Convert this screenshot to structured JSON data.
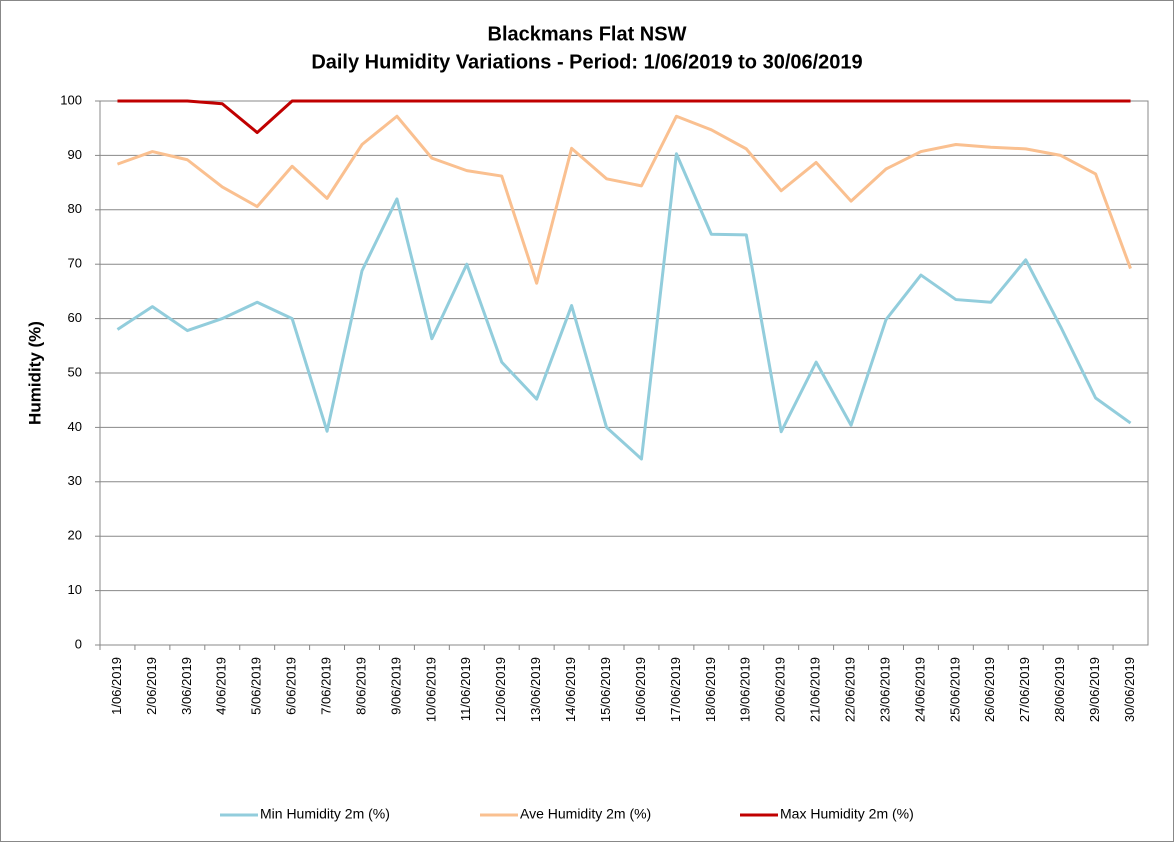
{
  "chart_data": {
    "type": "line",
    "title": "Blackmans Flat NSW",
    "subtitle": "Daily Humidity Variations - Period: 1/06/2019 to 30/06/2019",
    "y_label": "Humidity (%)",
    "categories": [
      "1/06/2019",
      "2/06/2019",
      "3/06/2019",
      "4/06/2019",
      "5/06/2019",
      "6/06/2019",
      "7/06/2019",
      "8/06/2019",
      "9/06/2019",
      "10/06/2019",
      "11/06/2019",
      "12/06/2019",
      "13/06/2019",
      "14/06/2019",
      "15/06/2019",
      "16/06/2019",
      "17/06/2019",
      "18/06/2019",
      "19/06/2019",
      "20/06/2019",
      "21/06/2019",
      "22/06/2019",
      "23/06/2019",
      "24/06/2019",
      "25/06/2019",
      "26/06/2019",
      "27/06/2019",
      "28/06/2019",
      "29/06/2019",
      "30/06/2019"
    ],
    "series": [
      {
        "name": "Min Humidity 2m (%)",
        "color": "#92cddc",
        "values": [
          58,
          62.2,
          57.8,
          60,
          63,
          60,
          39.3,
          68.8,
          82,
          56.3,
          70,
          52,
          45.2,
          62.4,
          40,
          34.2,
          90.3,
          75.5,
          75.4,
          39.2,
          52,
          40.4,
          59.8,
          68,
          63.5,
          63,
          70.8,
          58.5,
          45.4,
          40.8
        ]
      },
      {
        "name": "Ave Humidity 2m (%)",
        "color": "#fac090",
        "values": [
          88.4,
          90.7,
          89.2,
          84.2,
          80.6,
          88,
          82.1,
          92,
          97.2,
          89.5,
          87.2,
          86.2,
          66.5,
          91.3,
          85.7,
          84.4,
          97.2,
          94.7,
          91.2,
          83.5,
          88.7,
          81.6,
          87.5,
          90.7,
          92,
          91.5,
          91.2,
          90,
          86.6,
          69.2
        ]
      },
      {
        "name": "Max Humidity 2m (%)",
        "color": "#c00000",
        "values": [
          100,
          100,
          100,
          99.5,
          94.2,
          100,
          100,
          100,
          100,
          100,
          100,
          100,
          100,
          100,
          100,
          100,
          100,
          100,
          100,
          100,
          100,
          100,
          100,
          100,
          100,
          100,
          100,
          100,
          100,
          100
        ]
      }
    ],
    "ylim": [
      0,
      100
    ],
    "yticks": [
      0,
      10,
      20,
      30,
      40,
      50,
      60,
      70,
      80,
      90,
      100
    ],
    "grid": true,
    "legend": "bottom"
  }
}
